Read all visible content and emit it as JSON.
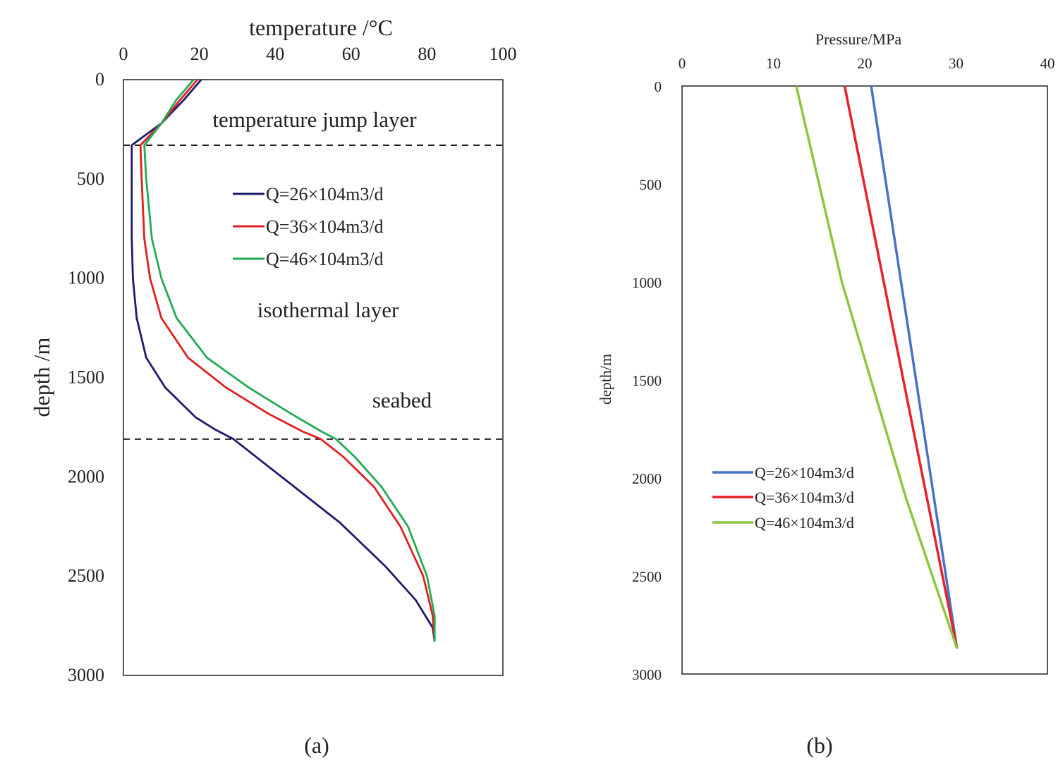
{
  "chart_data": [
    {
      "type": "line",
      "panel": "(a)",
      "xlabel": "temperature /°C",
      "ylabel": "depth /m",
      "xlim": [
        0,
        100
      ],
      "ylim": [
        0,
        3000
      ],
      "y_axis_inverted": true,
      "x_axis_position": "top",
      "grid": false,
      "legend_placement": "center",
      "x_ticks": [
        "0",
        "20",
        "40",
        "60",
        "80",
        "100"
      ],
      "y_ticks": [
        "0",
        "500",
        "1000",
        "1500",
        "2000",
        "2500",
        "3000"
      ],
      "annotations": [
        "temperature jump layer",
        "isothermal layer",
        "seabed"
      ],
      "reference_lines": [
        {
          "style": "dashed",
          "orientation": "horizontal",
          "depth": 330
        },
        {
          "style": "dashed",
          "orientation": "horizontal",
          "depth": 1810
        }
      ],
      "series": [
        {
          "name": "Q=26×104m3/d",
          "color": "#1f1a6e",
          "points": [
            [
              20.5,
              0
            ],
            [
              16,
              100
            ],
            [
              10,
              220
            ],
            [
              2.2,
              330
            ],
            [
              2.2,
              500
            ],
            [
              2.2,
              800
            ],
            [
              2.5,
              1000
            ],
            [
              3.5,
              1200
            ],
            [
              6,
              1400
            ],
            [
              11,
              1550
            ],
            [
              19,
              1700
            ],
            [
              24,
              1760
            ],
            [
              29,
              1810
            ],
            [
              35,
              1900
            ],
            [
              45,
              2050
            ],
            [
              57,
              2230
            ],
            [
              69,
              2450
            ],
            [
              77,
              2620
            ],
            [
              81.5,
              2760
            ],
            [
              82,
              2830
            ]
          ]
        },
        {
          "name": "Q=36×104m3/d",
          "color": "#e02020",
          "points": [
            [
              19.5,
              0
            ],
            [
              15,
              100
            ],
            [
              10,
              220
            ],
            [
              4.5,
              330
            ],
            [
              4.8,
              500
            ],
            [
              5.5,
              800
            ],
            [
              7,
              1000
            ],
            [
              10,
              1200
            ],
            [
              17,
              1400
            ],
            [
              27,
              1550
            ],
            [
              38,
              1680
            ],
            [
              47,
              1770
            ],
            [
              52,
              1810
            ],
            [
              58,
              1900
            ],
            [
              66,
              2050
            ],
            [
              73,
              2250
            ],
            [
              79,
              2500
            ],
            [
              81.5,
              2700
            ],
            [
              82,
              2830
            ]
          ]
        },
        {
          "name": "Q=46×104m3/d",
          "color": "#22aa55",
          "points": [
            [
              18.5,
              0
            ],
            [
              14,
              100
            ],
            [
              10,
              220
            ],
            [
              5.5,
              330
            ],
            [
              6,
              500
            ],
            [
              7.5,
              800
            ],
            [
              10,
              1000
            ],
            [
              14,
              1200
            ],
            [
              22,
              1400
            ],
            [
              33,
              1550
            ],
            [
              44,
              1680
            ],
            [
              52,
              1770
            ],
            [
              56,
              1810
            ],
            [
              61,
              1900
            ],
            [
              68,
              2050
            ],
            [
              75,
              2250
            ],
            [
              80,
              2500
            ],
            [
              82,
              2700
            ],
            [
              82,
              2830
            ]
          ]
        }
      ]
    },
    {
      "type": "line",
      "panel": "(b)",
      "xlabel": "Pressure/MPa",
      "ylabel": "depth/m",
      "xlim": [
        0,
        40
      ],
      "ylim": [
        0,
        3000
      ],
      "y_axis_inverted": true,
      "x_axis_position": "top",
      "grid": false,
      "legend_placement": "lower-left",
      "x_ticks": [
        "0",
        "10",
        "20",
        "30",
        "40"
      ],
      "y_ticks": [
        "0",
        "500",
        "1000",
        "1500",
        "2000",
        "2500",
        "3000"
      ],
      "series": [
        {
          "name": "Q=26×104m3/d",
          "color": "#4a72c4",
          "points": [
            [
              20.7,
              0
            ],
            [
              30.1,
              2870
            ]
          ]
        },
        {
          "name": "Q=36×104m3/d",
          "color": "#e8202a",
          "points": [
            [
              17.8,
              0
            ],
            [
              30.1,
              2870
            ]
          ]
        },
        {
          "name": "Q=46×104m3/d",
          "color": "#8dc63f",
          "points": [
            [
              12.5,
              0
            ],
            [
              17.5,
              1000
            ],
            [
              24.5,
              2100
            ],
            [
              30.1,
              2870
            ]
          ]
        }
      ]
    }
  ],
  "captions": {
    "a": "(a)",
    "b": "(b)"
  }
}
